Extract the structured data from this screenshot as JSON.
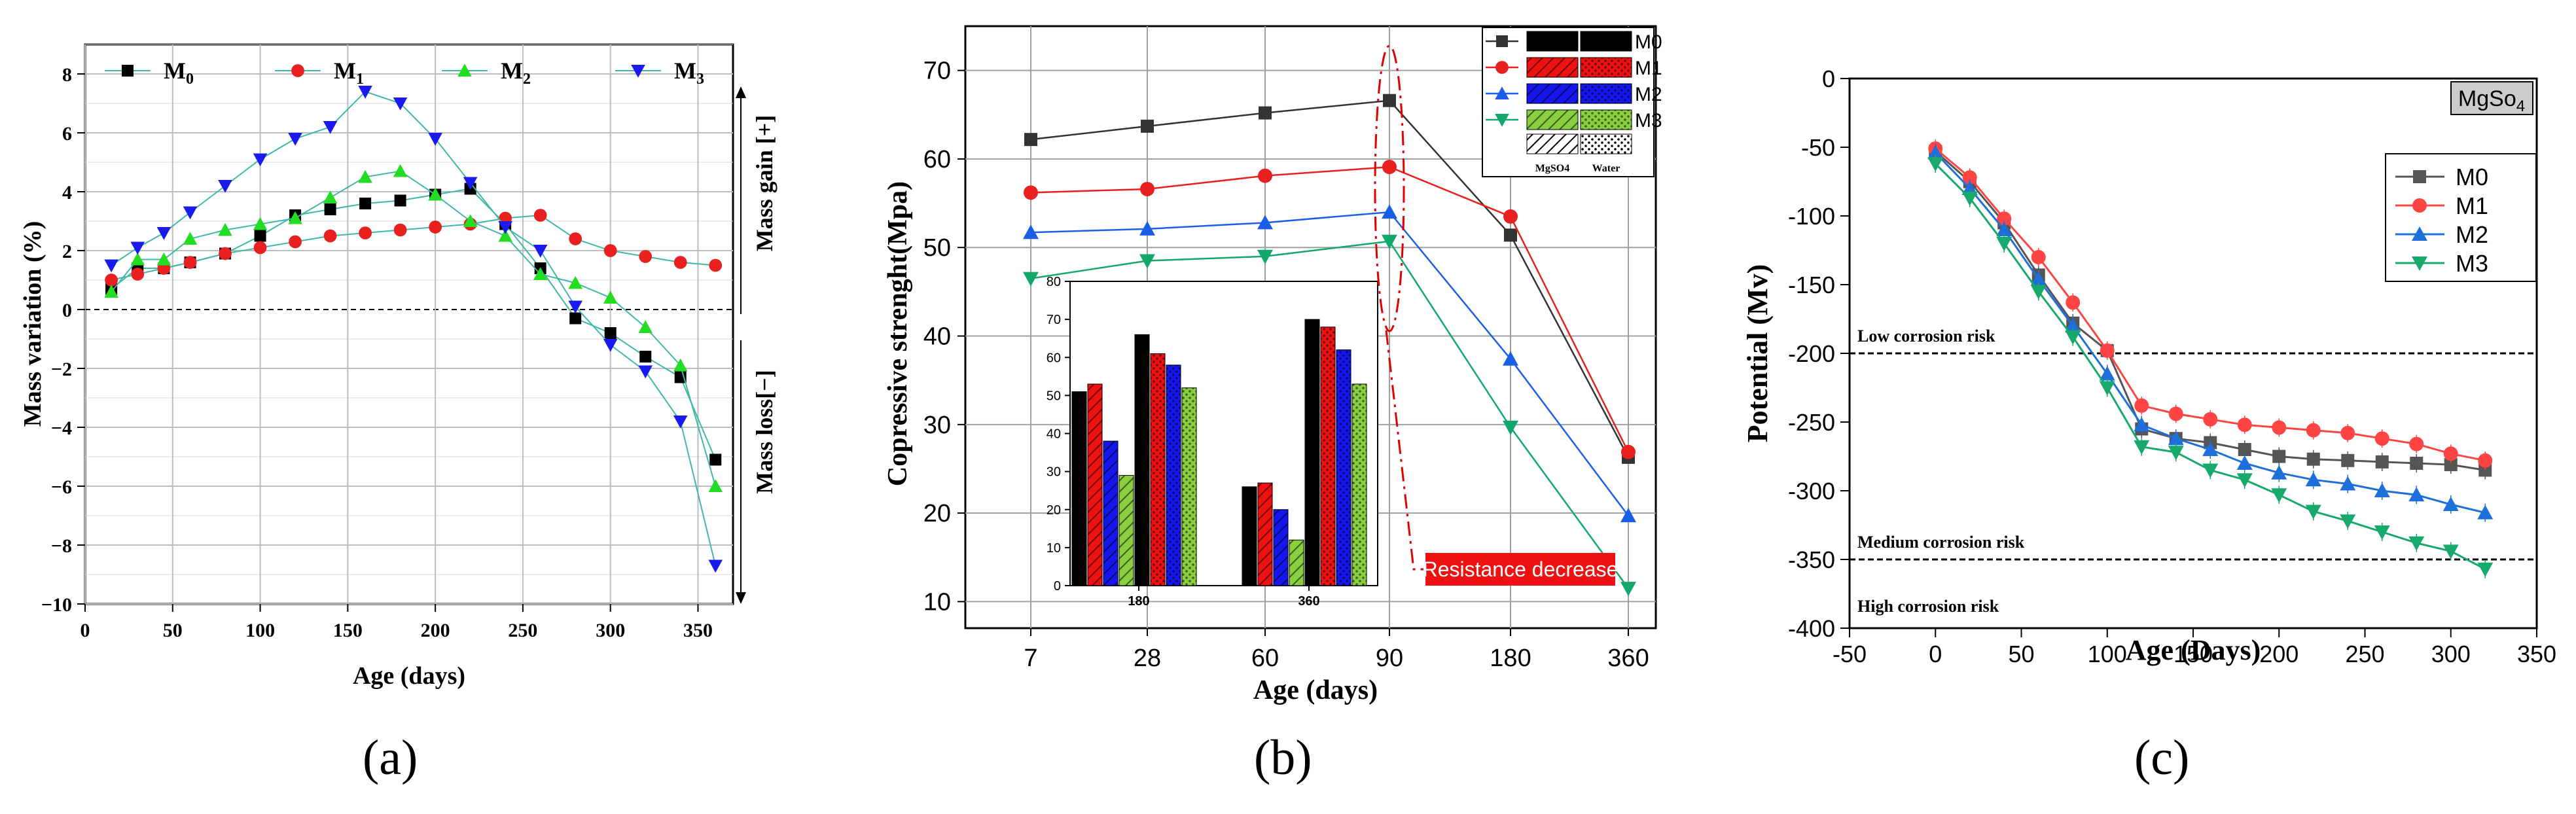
{
  "panels": [
    {
      "label": "(a)",
      "chart_data": {
        "type": "scatter",
        "title": "",
        "xlabel": "Age (days)",
        "ylabel": "Mass variation (%)",
        "xlim": [
          0,
          370
        ],
        "ylim": [
          -10,
          9
        ],
        "xticks": [
          "0",
          "50",
          "100",
          "150",
          "200",
          "250",
          "300",
          "350"
        ],
        "yticks": [
          "-10",
          "-8",
          "-6",
          "-4",
          "-2",
          "0",
          "2",
          "4",
          "6",
          "8"
        ],
        "grid": true,
        "legend": "top, horizontal",
        "right_annotations": [
          "Mass gain [+]",
          "Mass loss[−]"
        ],
        "series": [
          {
            "name": "M",
            "sub": "0",
            "color": "#000000",
            "marker": "square",
            "x": [
              15,
              30,
              45,
              60,
              80,
              100,
              120,
              140,
              160,
              180,
              200,
              220,
              240,
              260,
              280,
              300,
              320,
              340,
              360
            ],
            "y": [
              0.7,
              1.4,
              1.4,
              1.6,
              1.9,
              2.5,
              3.2,
              3.4,
              3.6,
              3.7,
              3.9,
              4.1,
              2.9,
              1.4,
              -0.3,
              -0.8,
              -1.6,
              -2.3,
              -5.1
            ]
          },
          {
            "name": "M",
            "sub": "1",
            "color": "#e8201f",
            "marker": "circle",
            "x": [
              15,
              30,
              45,
              60,
              80,
              100,
              120,
              140,
              160,
              180,
              200,
              220,
              240,
              260,
              280,
              300,
              320,
              340,
              360
            ],
            "y": [
              1.0,
              1.2,
              1.4,
              1.6,
              1.9,
              2.1,
              2.3,
              2.5,
              2.6,
              2.7,
              2.8,
              2.9,
              3.1,
              3.2,
              2.4,
              2.0,
              1.8,
              1.6,
              1.5
            ]
          },
          {
            "name": "M",
            "sub": "2",
            "color": "#22dd22",
            "marker": "triangle-up",
            "x": [
              15,
              30,
              45,
              60,
              80,
              100,
              120,
              140,
              160,
              180,
              200,
              220,
              240,
              260,
              280,
              300,
              320,
              340,
              360
            ],
            "y": [
              0.6,
              1.7,
              1.7,
              2.4,
              2.7,
              2.9,
              3.1,
              3.8,
              4.5,
              4.7,
              3.9,
              3.0,
              2.5,
              1.2,
              0.9,
              0.4,
              -0.6,
              -1.9,
              -6.0
            ]
          },
          {
            "name": "M",
            "sub": "3",
            "color": "#1a1aee",
            "marker": "triangle-down",
            "x": [
              15,
              30,
              45,
              60,
              80,
              100,
              120,
              140,
              160,
              180,
              200,
              220,
              240,
              260,
              280,
              300,
              320,
              340,
              360
            ],
            "y": [
              1.5,
              2.1,
              2.6,
              3.3,
              4.2,
              5.1,
              5.8,
              6.2,
              7.4,
              7.0,
              5.8,
              4.3,
              2.8,
              2.0,
              0.1,
              -1.2,
              -2.1,
              -3.8,
              -8.7
            ]
          }
        ]
      }
    },
    {
      "label": "(b)",
      "chart_data": {
        "type": "line",
        "title": "",
        "xlabel": "Age (days)",
        "ylabel": "Copressive strenght(Mpa)",
        "categories": [
          "7",
          "28",
          "60",
          "90",
          "180",
          "360"
        ],
        "ylim": [
          7,
          75
        ],
        "yticks": [
          "10",
          "20",
          "30",
          "40",
          "50",
          "60",
          "70"
        ],
        "grid": true,
        "legend": "top-right",
        "annotation": "Resistance decrease",
        "hatch_legend": [
          "MgSO4",
          "Water"
        ],
        "series": [
          {
            "name": "M0",
            "color": "#333333",
            "marker": "square",
            "values": [
              62.2,
              63.7,
              65.2,
              66.6,
              51.4,
              26.3
            ]
          },
          {
            "name": "M1",
            "color": "#e8201f",
            "marker": "circle",
            "values": [
              56.2,
              56.6,
              58.1,
              59.1,
              53.5,
              26.9
            ]
          },
          {
            "name": "M2",
            "color": "#1a5ee8",
            "marker": "triangle-up",
            "values": [
              51.7,
              52.1,
              52.8,
              54.0,
              37.4,
              19.7
            ]
          },
          {
            "name": "M3",
            "color": "#12a86b",
            "marker": "triangle-down",
            "values": [
              46.5,
              48.5,
              49.0,
              50.7,
              29.7,
              11.5
            ]
          }
        ],
        "inset": {
          "type": "bar",
          "categories": [
            "180",
            "360"
          ],
          "ylim": [
            0,
            80
          ],
          "yticks": [
            "0",
            "10",
            "20",
            "30",
            "40",
            "50",
            "60",
            "70",
            "80"
          ],
          "bars": [
            {
              "group": "180",
              "series": "M0",
              "treatment": "MgSO4",
              "value": 51
            },
            {
              "group": "180",
              "series": "M1",
              "treatment": "MgSO4",
              "value": 53
            },
            {
              "group": "180",
              "series": "M2",
              "treatment": "MgSO4",
              "value": 38
            },
            {
              "group": "180",
              "series": "M3",
              "treatment": "MgSO4",
              "value": 29
            },
            {
              "group": "180",
              "series": "M0",
              "treatment": "Water",
              "value": 66
            },
            {
              "group": "180",
              "series": "M1",
              "treatment": "Water",
              "value": 61
            },
            {
              "group": "180",
              "series": "M2",
              "treatment": "Water",
              "value": 58
            },
            {
              "group": "180",
              "series": "M3",
              "treatment": "Water",
              "value": 52
            },
            {
              "group": "360",
              "series": "M0",
              "treatment": "MgSO4",
              "value": 26
            },
            {
              "group": "360",
              "series": "M1",
              "treatment": "MgSO4",
              "value": 27
            },
            {
              "group": "360",
              "series": "M2",
              "treatment": "MgSO4",
              "value": 20
            },
            {
              "group": "360",
              "series": "M3",
              "treatment": "MgSO4",
              "value": 12
            },
            {
              "group": "360",
              "series": "M0",
              "treatment": "Water",
              "value": 70
            },
            {
              "group": "360",
              "series": "M1",
              "treatment": "Water",
              "value": 68
            },
            {
              "group": "360",
              "series": "M2",
              "treatment": "Water",
              "value": 62
            },
            {
              "group": "360",
              "series": "M3",
              "treatment": "Water",
              "value": 53
            }
          ],
          "colors": {
            "M0": "#000000",
            "M1": "#ee1111",
            "M2": "#1515ee",
            "M3": "#88d040"
          }
        }
      }
    },
    {
      "label": "(c)",
      "chart_data": {
        "type": "line",
        "title": "MgSo4",
        "xlabel": "Age (Days)",
        "ylabel": "Potential (Mv)",
        "xlim": [
          -50,
          350
        ],
        "ylim": [
          -400,
          0
        ],
        "xticks": [
          "-50",
          "0",
          "50",
          "100",
          "150",
          "200",
          "250",
          "300",
          "350"
        ],
        "yticks": [
          "-400",
          "-350",
          "-300",
          "-250",
          "-200",
          "-150",
          "-100",
          "-50",
          "0"
        ],
        "grid": false,
        "legend": "right, below title",
        "thresholds": [
          {
            "value": -200,
            "label": "Low corrosion risk"
          },
          {
            "value": -350,
            "label": "Medium corrosion risk"
          }
        ],
        "region_label": "High corrosion risk",
        "series": [
          {
            "name": "M0",
            "color": "#555555",
            "marker": "square",
            "x": [
              0,
              20,
              40,
              60,
              80,
              100,
              120,
              140,
              160,
              180,
              200,
              220,
              240,
              260,
              280,
              300,
              320
            ],
            "y": [
              -53,
              -75,
              -105,
              -143,
              -178,
              -198,
              -255,
              -262,
              -265,
              -270,
              -275,
              -277,
              -278,
              -279,
              -280,
              -281,
              -285
            ]
          },
          {
            "name": "M1",
            "color": "#ff4444",
            "marker": "circle",
            "x": [
              0,
              20,
              40,
              60,
              80,
              100,
              120,
              140,
              160,
              180,
              200,
              220,
              240,
              260,
              280,
              300,
              320
            ],
            "y": [
              -51,
              -72,
              -102,
              -130,
              -163,
              -198,
              -238,
              -244,
              -248,
              -252,
              -254,
              -256,
              -258,
              -262,
              -266,
              -273,
              -278
            ]
          },
          {
            "name": "M2",
            "color": "#1e6fd9",
            "marker": "triangle-up",
            "x": [
              0,
              20,
              40,
              60,
              80,
              100,
              120,
              140,
              160,
              180,
              200,
              220,
              240,
              260,
              280,
              300,
              320
            ],
            "y": [
              -54,
              -80,
              -110,
              -146,
              -180,
              -215,
              -252,
              -262,
              -270,
              -280,
              -287,
              -292,
              -295,
              -300,
              -303,
              -310,
              -316
            ]
          },
          {
            "name": "M3",
            "color": "#17a86b",
            "marker": "triangle-down",
            "x": [
              0,
              20,
              40,
              60,
              80,
              100,
              120,
              140,
              160,
              180,
              200,
              220,
              240,
              260,
              280,
              300,
              320
            ],
            "y": [
              -62,
              -87,
              -120,
              -155,
              -188,
              -225,
              -268,
              -272,
              -285,
              -292,
              -303,
              -315,
              -322,
              -330,
              -338,
              -344,
              -357
            ]
          }
        ]
      }
    }
  ]
}
